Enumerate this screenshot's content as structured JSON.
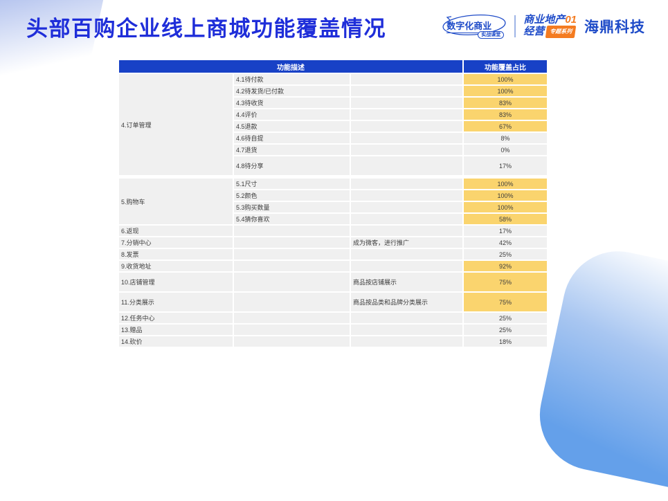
{
  "page": {
    "title": "头部百购企业线上商城功能覆盖情况"
  },
  "logos": {
    "digital_business": {
      "main": "数字化商业",
      "badge": "实战课堂"
    },
    "commercial": {
      "line1": "商业地产",
      "line1_num": "01",
      "line2": "经营",
      "badge": "专题系列"
    },
    "company": "海鼎科技"
  },
  "colors": {
    "header_blue": "#1841C6",
    "title_blue": "#1F2ED9",
    "highlight_yellow": "#FAD46E",
    "row_gray": "#F0F0F0",
    "brand_orange": "#F47B20",
    "logo_blue": "#1E4BC8"
  },
  "table": {
    "headers": [
      "功能描述",
      "功能覆盖占比"
    ],
    "rows": [
      {
        "category": "4.订单管理",
        "rowspan": 8,
        "sub": "4.1待付款",
        "note": "",
        "pct": "100%",
        "highlight": true
      },
      {
        "sub": "4.2待发货/已付款",
        "note": "",
        "pct": "100%",
        "highlight": true
      },
      {
        "sub": "4.3待收货",
        "note": "",
        "pct": "83%",
        "highlight": true
      },
      {
        "sub": "4.4评价",
        "note": "",
        "pct": "83%",
        "highlight": true
      },
      {
        "sub": "4.5退款",
        "note": "",
        "pct": "67%",
        "highlight": true
      },
      {
        "sub": "4.6待自提",
        "note": "",
        "pct": "8%",
        "highlight": false
      },
      {
        "sub": "4.7退货",
        "note": "",
        "pct": "0%",
        "highlight": false
      },
      {
        "sub": "4.8待分享",
        "note": "",
        "pct": "17%",
        "highlight": false,
        "tall": true
      },
      {
        "category": "5.购物车",
        "rowspan": 4,
        "sub": "5.1尺寸",
        "note": "",
        "pct": "100%",
        "highlight": true,
        "gap": true
      },
      {
        "sub": "5.2颜色",
        "note": "",
        "pct": "100%",
        "highlight": true
      },
      {
        "sub": "5.3购买数量",
        "note": "",
        "pct": "100%",
        "highlight": true
      },
      {
        "sub": "5.4猜你喜欢",
        "note": "",
        "pct": "58%",
        "highlight": true
      },
      {
        "category": "6.返现",
        "rowspan": 1,
        "sub": "",
        "note": "",
        "pct": "17%",
        "highlight": false
      },
      {
        "category": "7.分销中心",
        "rowspan": 1,
        "sub": "",
        "note": "成为微客，进行推广",
        "pct": "42%",
        "highlight": false
      },
      {
        "category": "8.发票",
        "rowspan": 1,
        "sub": "",
        "note": "",
        "pct": "25%",
        "highlight": false
      },
      {
        "category": "9.收货地址",
        "rowspan": 1,
        "sub": "",
        "note": "",
        "pct": "92%",
        "highlight": true
      },
      {
        "category": "10.店铺管理",
        "rowspan": 1,
        "sub": "",
        "note": "商品按店铺展示",
        "pct": "75%",
        "highlight": true,
        "tall": true
      },
      {
        "category": "11.分类展示",
        "rowspan": 1,
        "sub": "",
        "note": "商品按品类和品牌分类展示",
        "pct": "75%",
        "highlight": true,
        "tall": true
      },
      {
        "category": "12.任务中心",
        "rowspan": 1,
        "sub": "",
        "note": "",
        "pct": "25%",
        "highlight": false
      },
      {
        "category": "13.赠品",
        "rowspan": 1,
        "sub": "",
        "note": "",
        "pct": "25%",
        "highlight": false
      },
      {
        "category": "14.砍价",
        "rowspan": 1,
        "sub": "",
        "note": "",
        "pct": "18%",
        "highlight": false
      }
    ]
  }
}
